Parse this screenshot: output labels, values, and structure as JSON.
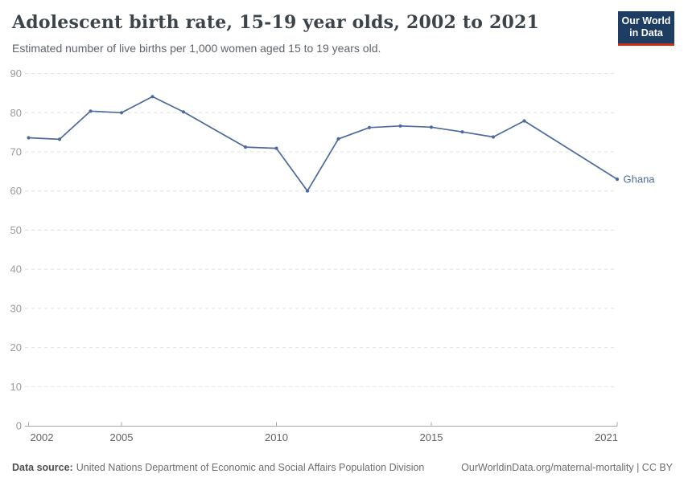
{
  "header": {
    "title": "Adolescent birth rate, 15-19 year olds, 2002 to 2021",
    "subtitle": "Estimated number of live births per 1,000 women aged 15 to 19 years old.",
    "logo": {
      "line1": "Our World",
      "line2": "in Data"
    }
  },
  "chart_data": {
    "type": "line",
    "title": "Adolescent birth rate, 15-19 year olds, 2002 to 2021",
    "subtitle": "Estimated number of live births per 1,000 women aged 15 to 19 years old.",
    "xlabel": "",
    "ylabel": "",
    "xlim": [
      2002,
      2021
    ],
    "ylim": [
      0,
      90
    ],
    "xticks": [
      2002,
      2005,
      2010,
      2015,
      2021
    ],
    "yticks": [
      0,
      10,
      20,
      30,
      40,
      50,
      60,
      70,
      80,
      90
    ],
    "grid": "horizontal-dashed",
    "legend_position": "end-of-line-label",
    "end_label": "Ghana",
    "series": [
      {
        "name": "Ghana",
        "color": "#4c6a9c",
        "points": [
          {
            "year": 2002,
            "value": 73.6
          },
          {
            "year": 2003,
            "value": 73.2
          },
          {
            "year": 2004,
            "value": 80.4
          },
          {
            "year": 2005,
            "value": 80.0
          },
          {
            "year": 2006,
            "value": 84.1
          },
          {
            "year": 2007,
            "value": 80.2
          },
          {
            "year": 2009,
            "value": 71.2
          },
          {
            "year": 2010,
            "value": 70.9
          },
          {
            "year": 2011,
            "value": 60.0
          },
          {
            "year": 2012,
            "value": 73.3
          },
          {
            "year": 2013,
            "value": 76.2
          },
          {
            "year": 2014,
            "value": 76.6
          },
          {
            "year": 2015,
            "value": 76.3
          },
          {
            "year": 2016,
            "value": 75.1
          },
          {
            "year": 2017,
            "value": 73.8
          },
          {
            "year": 2018,
            "value": 77.9
          },
          {
            "year": 2021,
            "value": 63.0
          }
        ]
      }
    ]
  },
  "footer": {
    "datasource_label": "Data source:",
    "datasource_text": "United Nations Department of Economic and Social Affairs Population Division",
    "citation": "OurWorldinData.org/maternal-mortality | CC BY"
  },
  "colors": {
    "line": "#4c6a9c",
    "logo_bg": "#1d3d63",
    "logo_red": "#cf2e1b",
    "grid": "#e0e0e0",
    "axis": "#a6a6a6",
    "y_tick_label": "#9a9a9a",
    "x_tick_label": "#616161",
    "title_text": "#3c444b"
  }
}
